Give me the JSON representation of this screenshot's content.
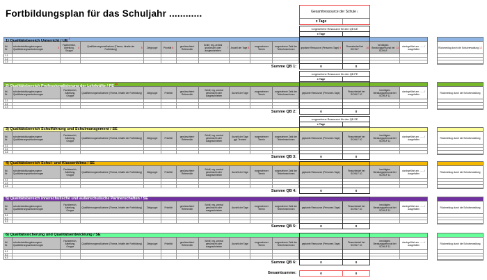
{
  "title": "Fortbildungsplan  für das Schuljahr ............",
  "gesamtressource": {
    "label": "Gesamtressource der Schule",
    "note": "1",
    "value": "x Tage",
    "value2": ""
  },
  "columns_base": [
    "lfd. Nr.",
    "schulentwicklungsbezogene Qualifizierungsanforderungen",
    "Fachbereich, Abteilung, Gruppe",
    "Qualifizierungsmaßnahme (Thema, Inhalte der Fortbildung)",
    "Zielgruppe",
    "Priorität",
    "gewünschter/r Referent/in",
    "Schilf, reg.,zentral gewünscht oder ausgeschrieben",
    "Anzahl der Tage",
    "vorgesehener Termin",
    "vorgesehene Zahl der Teilnehmer/innen",
    "geplante Ressource (Personen-Tage)",
    "Finanzbedarf bei SCHILF 10",
    "benötigtes Beratungspersonal bei SCHILF 11",
    "durchgeführt am ....... / ausgefallen"
  ],
  "sections": [
    {
      "title": "1) Qualitätsbereich Unterricht / UE",
      "note": "2",
      "color": "#8db4e2",
      "text_color": "#000000",
      "resource": {
        "label": "vorgesehene Ressource für den QB UE",
        "value": "x Tage"
      },
      "columns": [
        "lfd. Nr.",
        "schulentwicklungsbezogene Qualifizierungsanforderungen",
        "Fachbereich, Abteilung, Gruppe",
        "Qualifizierungsmaßnahme (Thema, Inhalte der Fortbildung)",
        "Zielgruppe",
        "Priorität",
        "gewünschter/r Referent/in",
        "Schilf, reg.,zentral gewünscht oder ausgeschrieben",
        "Anzahl der Tage",
        "vorgesehener Termin",
        "vorgesehene Zahl der Teilnehmer/innen",
        "geplante Ressource (Personen-Tage)",
        "Finanzbedarf bei SCHILF",
        "benötigtes Beratungspersonal bei SCHILF",
        "durchgeführt am ....... / ausgefallen"
      ],
      "column_notes": [
        "",
        "3",
        "4",
        "5",
        "",
        "6",
        "",
        "7",
        "8",
        "",
        "",
        "9",
        "10",
        "11",
        ""
      ],
      "rows": [
        "1.1",
        "1.2",
        "1.3"
      ],
      "sum_label": "Summe QB 1:",
      "sum": [
        "0",
        "0"
      ],
      "feedback": "Rückmeldug durch die Schulverwaltung",
      "feedback_note": "12"
    },
    {
      "title": "2) Qualitätsbereich Professionalisierung der Lehrkräfte / PE",
      "note": "13",
      "color": "#76b82a",
      "text_color": "#ffffff",
      "resource": {
        "label": "vorgesehene Ressource für den QB PE",
        "value": "x Tage"
      },
      "rows": [
        "2.1",
        "2.2",
        "2.3"
      ],
      "sum_label": "Summe QB 2:",
      "sum": [
        "0",
        "0"
      ],
      "feedback": "Rückmeldug durch die Schulverwaltung"
    },
    {
      "title": "3) Qualitätsbereich Schulführung und Schulmanagement / SE",
      "color": "#ffff99",
      "text_color": "#000000",
      "resource": {
        "label": "vorgesehene Ressource für den QB SE",
        "value": "x Tage"
      },
      "anzahl_label": "Anzahl der Tage ggf. Termine",
      "rows": [
        "3.1",
        "3.2",
        "3.3"
      ],
      "sum_label": "Summe QB 3:",
      "sum": [
        "0",
        "0"
      ],
      "feedback": "Rückmeldug durch die Schulverwaltung"
    },
    {
      "title": "4) Qualitätsbereich Schul- und Klassenklima / SE",
      "color": "#f5b800",
      "text_color": "#000000",
      "rows": [
        "4.1",
        "4.2",
        "4.3"
      ],
      "sum_label": "Summe QB 4:",
      "sum": [
        "0",
        "0"
      ],
      "feedback": "Rückmeldug durch die Schulverwaltung"
    },
    {
      "title": "5) Qualitätsbereich innerschulische und außerschulische Partnerschaften / SE",
      "color": "#7030a0",
      "text_color": "#ffffff",
      "rows": [
        "5.1",
        "5.2",
        "5.3"
      ],
      "sum_label": "Summe QB 5:",
      "sum": [
        "0",
        "0"
      ],
      "feedback": "Rückmeldug durch die Schulverwaltung"
    },
    {
      "title": "6) Qualitätssicherung und Qualitätsentwicklung / SE",
      "color": "#66ff99",
      "text_color": "#000000",
      "rows": [
        "6.1",
        "6.2",
        "6.3"
      ],
      "sum_label": "Summe QB 6:",
      "sum": [
        "0",
        "0"
      ],
      "feedback": "Rückmeldug durch die Schulverwaltung"
    }
  ],
  "total": {
    "label": "Gesamtsumme:",
    "values": [
      "0",
      "0"
    ]
  }
}
